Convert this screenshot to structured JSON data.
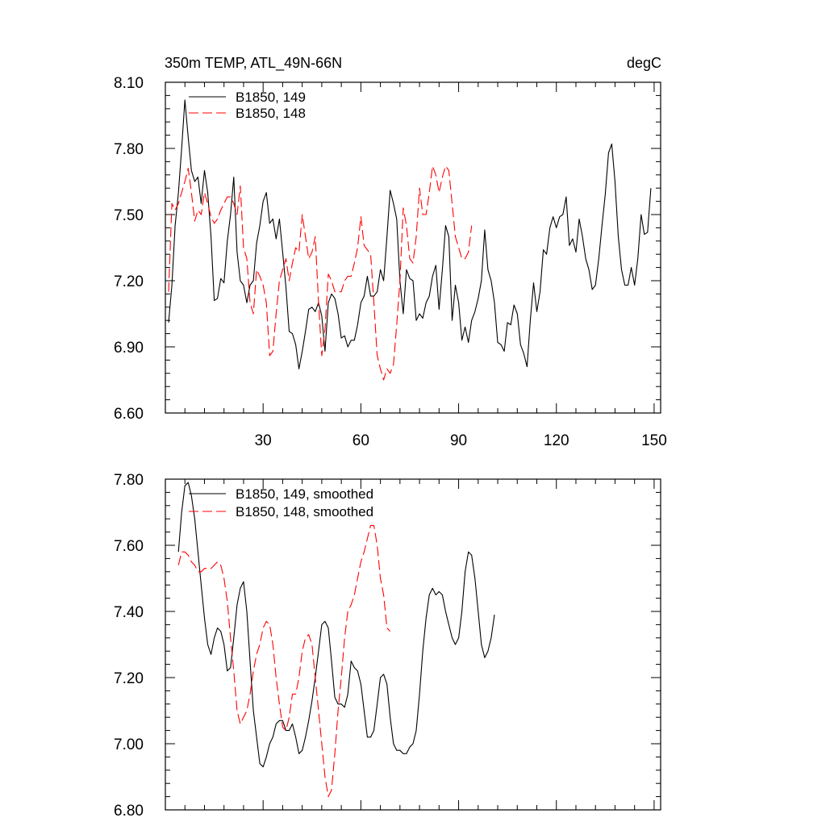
{
  "chart_data": [
    {
      "type": "line",
      "title_left": "350m TEMP, ATL_49N-66N",
      "title_right": "degC",
      "xlabel": "",
      "ylabel": "",
      "xlim": [
        0,
        152
      ],
      "ylim": [
        6.6,
        8.1
      ],
      "xticks": [
        30,
        60,
        90,
        120,
        150
      ],
      "xtick_labels": [
        "30",
        "60",
        "90",
        "120",
        "150"
      ],
      "yticks": [
        6.6,
        6.9,
        7.2,
        7.5,
        7.8,
        8.1
      ],
      "ytick_labels": [
        "6.60",
        "6.90",
        "7.20",
        "7.50",
        "7.80",
        "8.10"
      ],
      "legend_position": "top-left",
      "series": [
        {
          "name": "B1850, 149",
          "color": "#000000",
          "dash": "solid",
          "x_start": 1,
          "values": [
            7.01,
            7.18,
            7.45,
            7.6,
            7.8,
            8.02,
            7.85,
            7.7,
            7.65,
            7.67,
            7.55,
            7.7,
            7.6,
            7.4,
            7.11,
            7.12,
            7.21,
            7.19,
            7.38,
            7.5,
            7.67,
            7.33,
            7.2,
            7.18,
            7.1,
            7.18,
            7.2,
            7.37,
            7.45,
            7.56,
            7.6,
            7.46,
            7.48,
            7.39,
            7.48,
            7.33,
            7.17,
            6.97,
            6.96,
            6.91,
            6.8,
            6.88,
            6.97,
            7.07,
            7.08,
            7.06,
            7.1,
            7.04,
            6.88,
            7.1,
            7.14,
            7.12,
            7.05,
            6.94,
            6.95,
            6.9,
            6.93,
            6.93,
            7.0,
            7.1,
            7.13,
            7.22,
            7.13,
            7.13,
            7.15,
            7.25,
            7.2,
            7.4,
            7.61,
            7.55,
            7.48,
            7.2,
            7.05,
            7.25,
            7.21,
            7.2,
            7.02,
            7.05,
            7.03,
            7.1,
            7.13,
            7.22,
            7.27,
            7.07,
            7.25,
            7.45,
            7.4,
            7.02,
            7.18,
            7.1,
            6.93,
            6.99,
            6.92,
            7.02,
            7.06,
            7.12,
            7.2,
            7.43,
            7.25,
            7.2,
            7.1,
            6.92,
            6.91,
            6.88,
            7.01,
            7.0,
            7.09,
            7.05,
            6.91,
            6.87,
            6.81,
            7.02,
            7.19,
            7.06,
            7.15,
            7.34,
            7.32,
            7.44,
            7.49,
            7.44,
            7.49,
            7.5,
            7.58,
            7.36,
            7.39,
            7.33,
            7.48,
            7.4,
            7.3,
            7.25,
            7.16,
            7.18,
            7.3,
            7.45,
            7.59,
            7.78,
            7.82,
            7.65,
            7.4,
            7.25,
            7.18,
            7.18,
            7.26,
            7.18,
            7.3,
            7.5,
            7.41,
            7.42,
            7.62
          ]
        },
        {
          "name": "B1850, 148",
          "color": "#ff0000",
          "dash": "dashed",
          "x_start": 1,
          "values": [
            7.15,
            7.55,
            7.52,
            7.55,
            7.6,
            7.65,
            7.71,
            7.6,
            7.47,
            7.52,
            7.5,
            7.6,
            7.55,
            7.49,
            7.46,
            7.48,
            7.52,
            7.55,
            7.58,
            7.58,
            7.55,
            7.5,
            7.63,
            7.35,
            7.3,
            7.1,
            7.05,
            7.25,
            7.22,
            7.18,
            7.1,
            6.86,
            6.88,
            7.05,
            7.2,
            7.25,
            7.3,
            7.2,
            7.28,
            7.35,
            7.33,
            7.5,
            7.4,
            7.3,
            7.33,
            7.4,
            7.1,
            6.86,
            6.98,
            7.23,
            7.2,
            7.15,
            7.15,
            7.15,
            7.2,
            7.22,
            7.22,
            7.28,
            7.35,
            7.49,
            7.36,
            7.34,
            7.32,
            7.1,
            6.86,
            6.8,
            6.75,
            6.8,
            6.78,
            6.82,
            7.0,
            7.2,
            7.53,
            7.45,
            7.3,
            7.28,
            7.4,
            7.62,
            7.5,
            7.5,
            7.6,
            7.72,
            7.68,
            7.6,
            7.67,
            7.72,
            7.7,
            7.55,
            7.4,
            7.35,
            7.3,
            7.3,
            7.33,
            7.45
          ]
        }
      ]
    },
    {
      "type": "line",
      "xlabel": "",
      "ylabel": "",
      "xlim": [
        0,
        152
      ],
      "ylim": [
        6.8,
        7.8
      ],
      "xticks": [
        30,
        60,
        90,
        120,
        150
      ],
      "yticks": [
        6.8,
        7.0,
        7.2,
        7.4,
        7.6,
        7.8
      ],
      "ytick_labels": [
        "6.80",
        "7.00",
        "7.20",
        "7.40",
        "7.60",
        "7.80"
      ],
      "legend_position": "top-left",
      "series": [
        {
          "name": "B1850, 149, smoothed",
          "color": "#000000",
          "dash": "solid",
          "x_start": 4,
          "values": [
            7.58,
            7.7,
            7.78,
            7.79,
            7.75,
            7.68,
            7.58,
            7.48,
            7.38,
            7.3,
            7.27,
            7.32,
            7.35,
            7.34,
            7.3,
            7.22,
            7.23,
            7.32,
            7.42,
            7.47,
            7.49,
            7.4,
            7.25,
            7.1,
            7.02,
            6.94,
            6.93,
            6.96,
            7.0,
            7.02,
            7.06,
            7.07,
            7.07,
            7.04,
            7.04,
            7.06,
            7.02,
            6.97,
            6.98,
            7.02,
            7.07,
            7.13,
            7.2,
            7.28,
            7.36,
            7.37,
            7.35,
            7.25,
            7.14,
            7.12,
            7.12,
            7.11,
            7.15,
            7.25,
            7.23,
            7.22,
            7.18,
            7.1,
            7.02,
            7.02,
            7.04,
            7.12,
            7.2,
            7.21,
            7.18,
            7.08,
            7.0,
            6.98,
            6.98,
            6.97,
            6.97,
            6.99,
            7.0,
            7.04,
            7.15,
            7.28,
            7.38,
            7.45,
            7.47,
            7.45,
            7.46,
            7.45,
            7.4,
            7.36,
            7.32,
            7.3,
            7.32,
            7.4,
            7.52,
            7.58,
            7.57,
            7.5,
            7.4,
            7.3,
            7.26,
            7.28,
            7.32,
            7.39
          ]
        },
        {
          "name": "B1850, 148, smoothed",
          "color": "#ff0000",
          "dash": "dashed",
          "x_start": 4,
          "values": [
            7.54,
            7.58,
            7.58,
            7.57,
            7.55,
            7.54,
            7.52,
            7.52,
            7.53,
            7.53,
            7.53,
            7.54,
            7.55,
            7.54,
            7.5,
            7.43,
            7.32,
            7.22,
            7.1,
            7.06,
            7.08,
            7.1,
            7.15,
            7.22,
            7.27,
            7.3,
            7.35,
            7.37,
            7.36,
            7.3,
            7.2,
            7.12,
            7.05,
            7.04,
            7.08,
            7.15,
            7.15,
            7.2,
            7.28,
            7.32,
            7.33,
            7.3,
            7.2,
            7.1,
            7.0,
            6.9,
            6.84,
            6.86,
            6.97,
            7.1,
            7.2,
            7.32,
            7.4,
            7.42,
            7.45,
            7.5,
            7.55,
            7.58,
            7.62,
            7.66,
            7.66,
            7.6,
            7.5,
            7.45,
            7.35,
            7.34
          ]
        }
      ]
    }
  ]
}
